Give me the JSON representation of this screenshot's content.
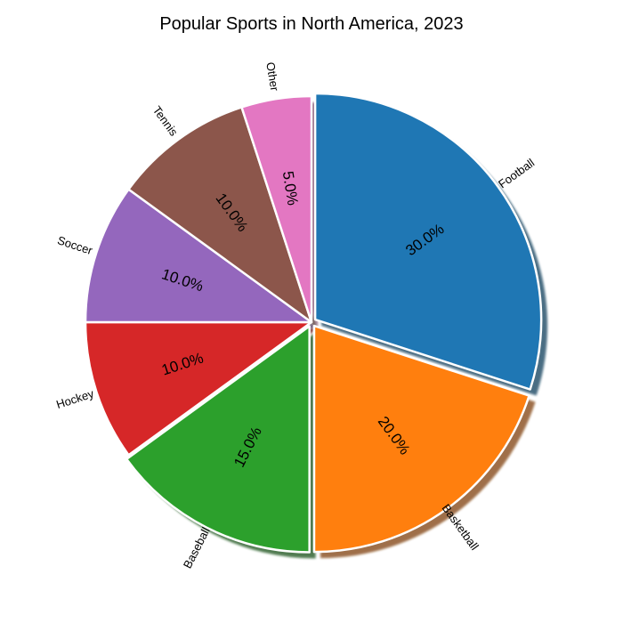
{
  "chart_data": {
    "type": "pie",
    "title": "Popular Sports in North America, 2023",
    "categories": [
      "Football",
      "Basketball",
      "Baseball",
      "Hockey",
      "Soccer",
      "Tennis",
      "Other"
    ],
    "values": [
      30,
      20,
      15,
      10,
      10,
      10,
      5
    ],
    "percent_labels": [
      "30.0%",
      "20.0%",
      "15.0%",
      "10.0%",
      "10.0%",
      "10.0%",
      "5.0%"
    ],
    "colors": [
      "#1f77b4",
      "#ff7f0e",
      "#2ca02c",
      "#d62728",
      "#9467bd",
      "#8c564b",
      "#e377c2"
    ],
    "explode": [
      0.02,
      0.02,
      0.02,
      0,
      0,
      0,
      0
    ],
    "start_angle_deg": 90,
    "direction": "clockwise",
    "shadow": true,
    "legend": "none"
  }
}
